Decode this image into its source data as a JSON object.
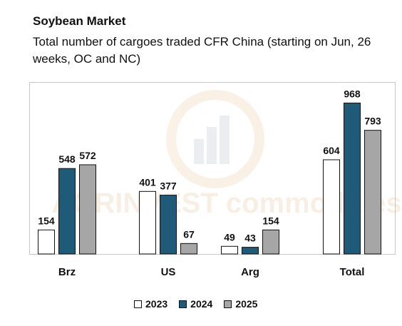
{
  "chart_data": {
    "type": "bar",
    "title": "Soybean Market",
    "subtitle": "Total number of cargoes traded CFR China (starting on Jun, 26 weeks, OC and NC)",
    "categories": [
      "Brz",
      "US",
      "Arg",
      "Total"
    ],
    "series": [
      {
        "name": "2023",
        "values": [
          154,
          401,
          49,
          604
        ],
        "color": "#ffffff"
      },
      {
        "name": "2024",
        "values": [
          548,
          377,
          43,
          968
        ],
        "color": "#1f5a78"
      },
      {
        "name": "2025",
        "values": [
          572,
          67,
          154,
          793
        ],
        "color": "#a6a6a6"
      }
    ],
    "ylim": [
      0,
      1000
    ],
    "grid": false,
    "legend_position": "bottom",
    "watermark": "AGRINVEST commodities"
  }
}
